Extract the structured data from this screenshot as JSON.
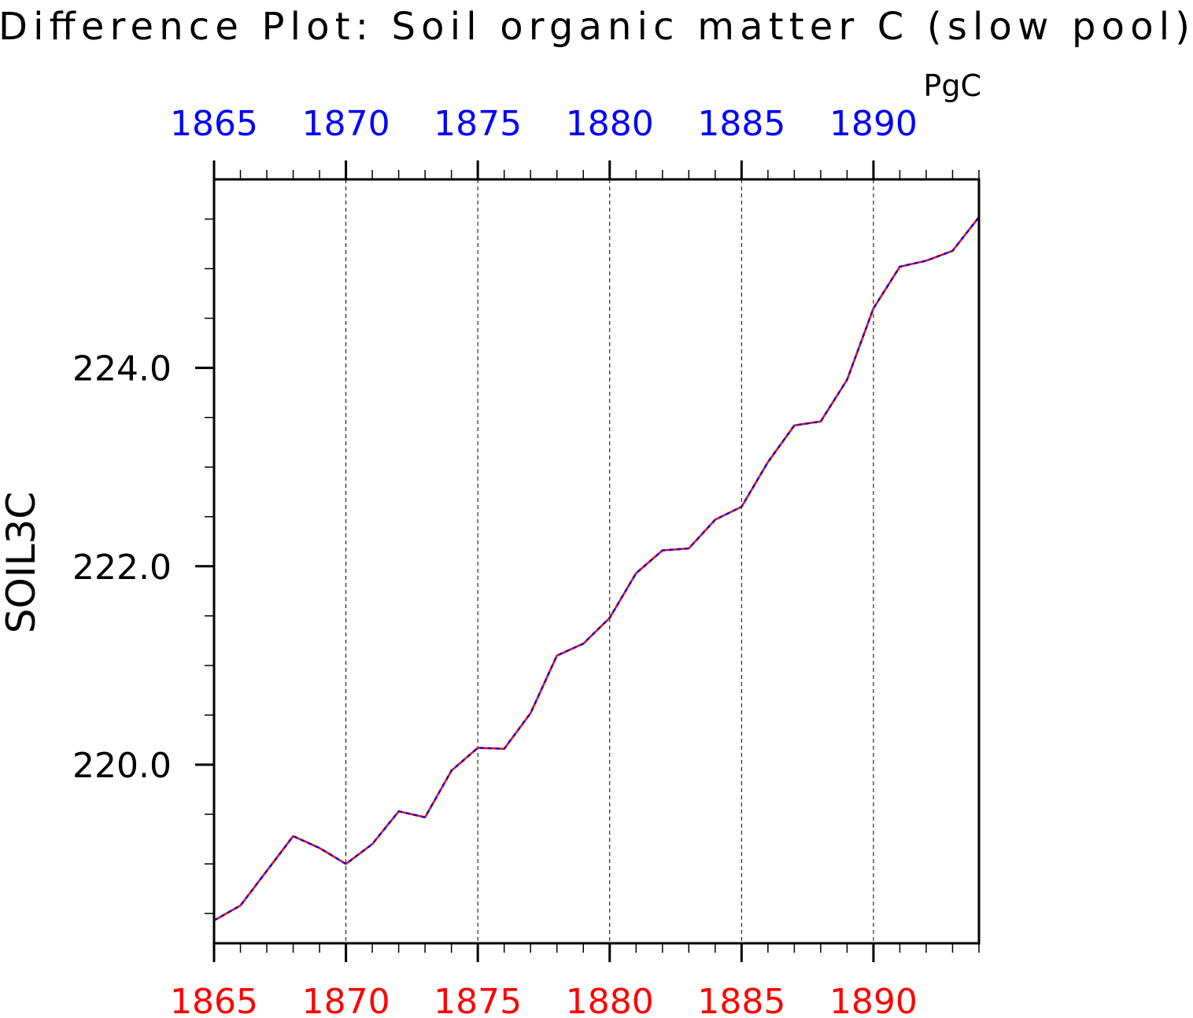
{
  "chart_data": {
    "type": "line",
    "title": "Difference Plot: Soil organic matter C (slow pool)",
    "units": "PgC",
    "ylabel": "SOIL3C",
    "xlabel": "",
    "xlim": [
      1865,
      1894
    ],
    "ylim": [
      218.2,
      225.9
    ],
    "x_major_ticks": [
      1865,
      1870,
      1875,
      1880,
      1885,
      1890
    ],
    "x_minor_step": 1,
    "y_major_ticks": [
      "220.0",
      "222.0",
      "224.0"
    ],
    "y_minor_step": 0.5,
    "grid": "vertical dashed lines at major x ticks",
    "legend": "none",
    "colors": {
      "top_axis_labels": "#0000ff",
      "bottom_axis_labels": "#ff0000",
      "series_a": "#ff0000",
      "series_b": "#0000ff",
      "axes": "#000000",
      "text": "#000000"
    },
    "x": [
      1865,
      1866,
      1867,
      1868,
      1869,
      1870,
      1871,
      1872,
      1873,
      1874,
      1875,
      1876,
      1877,
      1878,
      1879,
      1880,
      1881,
      1882,
      1883,
      1884,
      1885,
      1886,
      1887,
      1888,
      1889,
      1890,
      1891,
      1892,
      1893,
      1894
    ],
    "series": [
      {
        "color": "#ff0000",
        "style": "solid",
        "values": [
          218.43,
          218.58,
          218.93,
          219.28,
          219.16,
          219.0,
          219.2,
          219.53,
          219.47,
          219.94,
          220.17,
          220.16,
          220.52,
          221.1,
          221.22,
          221.48,
          221.93,
          222.16,
          222.18,
          222.47,
          222.6,
          223.05,
          223.42,
          223.46,
          223.88,
          224.6,
          225.02,
          225.08,
          225.18,
          225.52
        ]
      },
      {
        "color": "#0000ff",
        "style": "dashed",
        "values": [
          218.43,
          218.58,
          218.93,
          219.28,
          219.16,
          219.0,
          219.2,
          219.53,
          219.47,
          219.94,
          220.17,
          220.16,
          220.52,
          221.1,
          221.22,
          221.48,
          221.93,
          222.16,
          222.18,
          222.47,
          222.6,
          223.05,
          223.42,
          223.46,
          223.88,
          224.6,
          225.02,
          225.08,
          225.18,
          225.52
        ]
      }
    ]
  }
}
